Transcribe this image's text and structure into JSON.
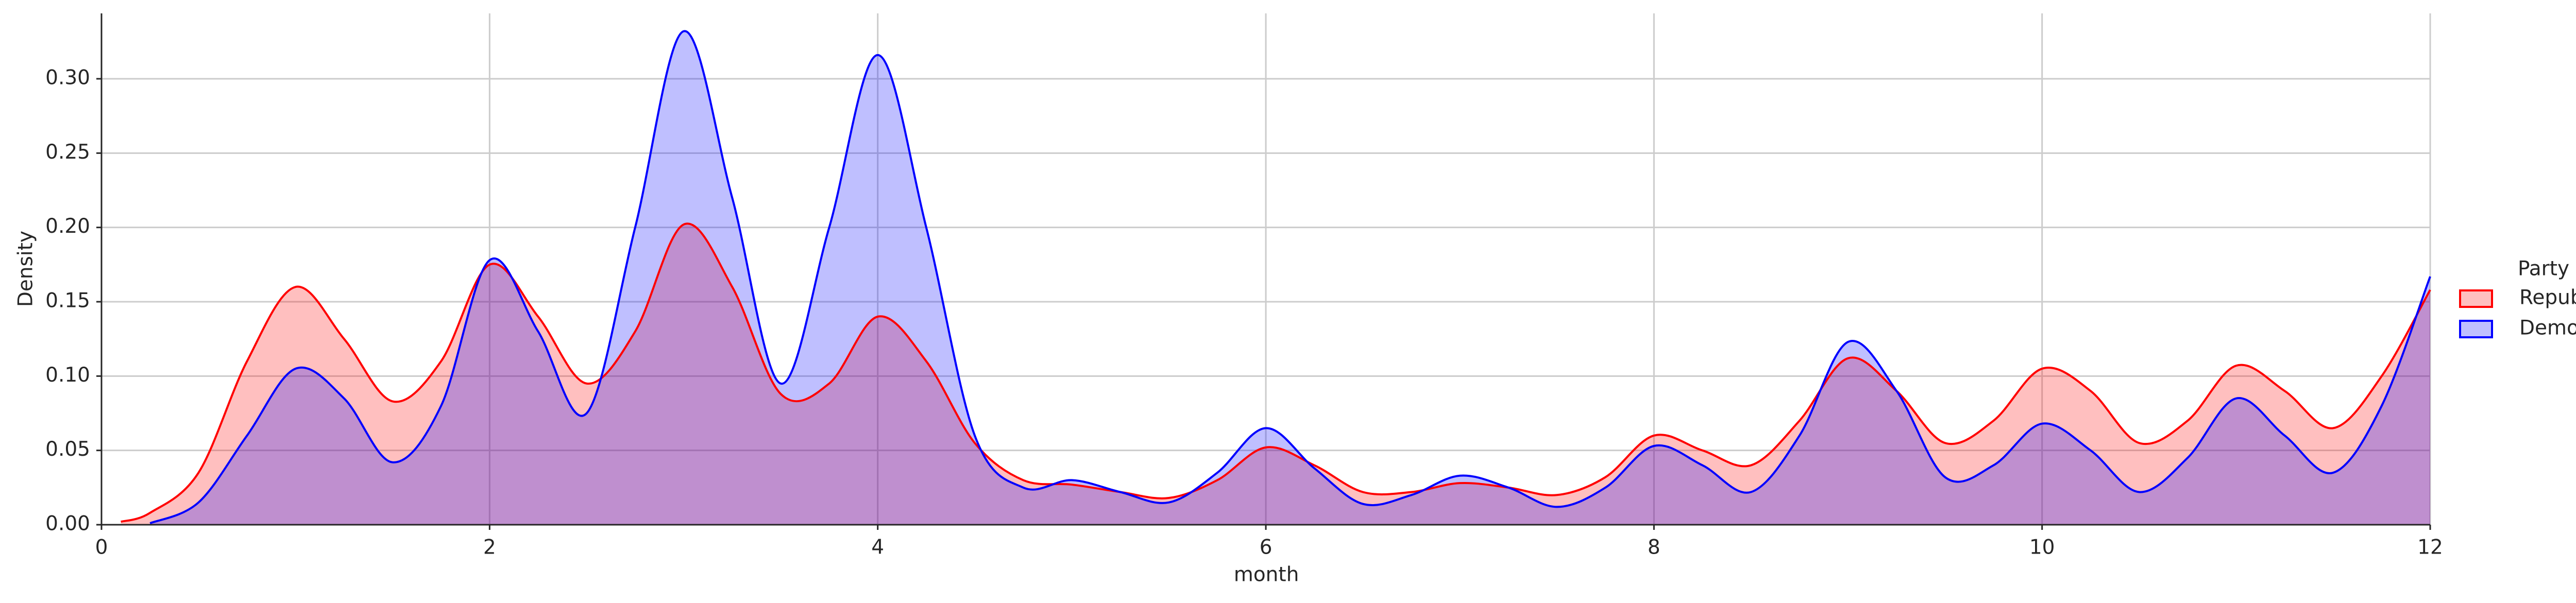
{
  "chart_data": {
    "type": "area",
    "x_label": "month",
    "y_label": "Density",
    "x": [
      0.1,
      0.25,
      0.5,
      0.75,
      1,
      1.25,
      1.5,
      1.75,
      2,
      2.25,
      2.5,
      2.75,
      3,
      3.25,
      3.5,
      3.75,
      4,
      4.25,
      4.5,
      4.75,
      5,
      5.25,
      5.5,
      5.75,
      6,
      6.25,
      6.5,
      6.75,
      7,
      7.25,
      7.5,
      7.75,
      8,
      8.25,
      8.5,
      8.75,
      9,
      9.25,
      9.5,
      9.75,
      10,
      10.25,
      10.5,
      10.75,
      11,
      11.25,
      11.5,
      11.75,
      12
    ],
    "series": [
      {
        "name": "Republican",
        "color": "#ff0000",
        "values": [
          0.002,
          0.008,
          0.035,
          0.11,
          0.16,
          0.125,
          0.083,
          0.11,
          0.175,
          0.14,
          0.095,
          0.13,
          0.202,
          0.16,
          0.088,
          0.095,
          0.14,
          0.11,
          0.055,
          0.03,
          0.027,
          0.022,
          0.018,
          0.03,
          0.052,
          0.04,
          0.022,
          0.022,
          0.028,
          0.025,
          0.02,
          0.032,
          0.06,
          0.05,
          0.04,
          0.07,
          0.112,
          0.09,
          0.055,
          0.07,
          0.105,
          0.09,
          0.055,
          0.07,
          0.107,
          0.09,
          0.065,
          0.1,
          0.158
        ]
      },
      {
        "name": "Democrat",
        "color": "#0000ff",
        "values": [
          null,
          0.001,
          0.015,
          0.06,
          0.105,
          0.085,
          0.042,
          0.08,
          0.178,
          0.13,
          0.075,
          0.2,
          0.332,
          0.22,
          0.095,
          0.2,
          0.316,
          0.2,
          0.06,
          0.025,
          0.03,
          0.022,
          0.015,
          0.035,
          0.065,
          0.038,
          0.014,
          0.02,
          0.033,
          0.025,
          0.012,
          0.025,
          0.053,
          0.04,
          0.022,
          0.06,
          0.123,
          0.09,
          0.032,
          0.04,
          0.068,
          0.05,
          0.022,
          0.045,
          0.085,
          0.06,
          0.035,
          0.08,
          0.167
        ]
      }
    ],
    "legend_title": "Party",
    "legend_position": "right",
    "xlim": [
      0,
      12
    ],
    "xticks": [
      0,
      2,
      4,
      6,
      8,
      10,
      12
    ],
    "ylim": [
      0,
      0.344
    ],
    "yticks": [
      {
        "value": 0,
        "label": "0.00"
      },
      {
        "value": 0.05,
        "label": "0.05"
      },
      {
        "value": 0.1,
        "label": "0.10"
      },
      {
        "value": 0.15,
        "label": "0.15"
      },
      {
        "value": 0.2,
        "label": "0.20"
      },
      {
        "value": 0.25,
        "label": "0.25"
      },
      {
        "value": 0.3,
        "label": "0.30"
      }
    ],
    "grid": true
  }
}
